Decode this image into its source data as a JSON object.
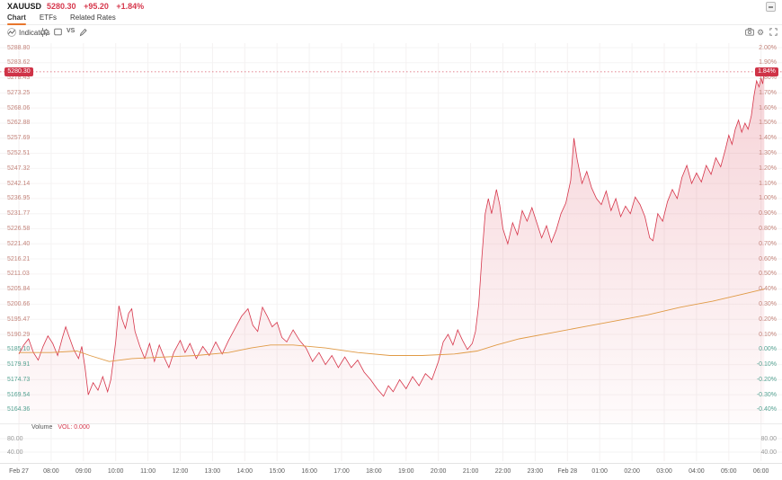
{
  "header": {
    "symbol": "XAUUSD",
    "price": "5280.30",
    "change": "+95.20",
    "change_pct": "+1.84%"
  },
  "tabs": [
    {
      "label": "Chart",
      "active": true
    },
    {
      "label": "ETFs",
      "active": false
    },
    {
      "label": "Related Rates",
      "active": false
    }
  ],
  "toolbar": {
    "indicators_label": "Indicators",
    "vs_label": "VS"
  },
  "colors": {
    "accent_red": "#d6354a",
    "badge_bg": "#cf3347",
    "ma_orange": "#e09a45",
    "tab_underline": "#e8762c",
    "pos_axis_label": "#c4857c",
    "neg_axis_label": "#56a393"
  },
  "chart_data": {
    "type": "area",
    "title": "XAUUSD intraday price with moving average",
    "last_price": 5280.3,
    "baseline_price": 5185.1,
    "last_change_pct": 1.84,
    "price_badge": "5280.30",
    "percent_badge": "1.84%",
    "ylim_percent": [
      -0.4,
      2.0
    ],
    "grid": true,
    "levels": [
      {
        "price": "5288.80",
        "percent": "2.00%",
        "value": 2.0
      },
      {
        "price": "5283.62",
        "percent": "1.90%",
        "value": 1.9
      },
      {
        "price": "5278.43",
        "percent": "1.80%",
        "value": 1.8
      },
      {
        "price": "5273.25",
        "percent": "1.70%",
        "value": 1.7
      },
      {
        "price": "5268.06",
        "percent": "1.60%",
        "value": 1.6
      },
      {
        "price": "5262.88",
        "percent": "1.50%",
        "value": 1.5
      },
      {
        "price": "5257.69",
        "percent": "1.40%",
        "value": 1.4
      },
      {
        "price": "5252.51",
        "percent": "1.30%",
        "value": 1.3
      },
      {
        "price": "5247.32",
        "percent": "1.20%",
        "value": 1.2
      },
      {
        "price": "5242.14",
        "percent": "1.10%",
        "value": 1.1
      },
      {
        "price": "5236.95",
        "percent": "1.00%",
        "value": 1.0
      },
      {
        "price": "5231.77",
        "percent": "0.90%",
        "value": 0.9
      },
      {
        "price": "5226.58",
        "percent": "0.80%",
        "value": 0.8
      },
      {
        "price": "5221.40",
        "percent": "0.70%",
        "value": 0.7
      },
      {
        "price": "5216.21",
        "percent": "0.60%",
        "value": 0.6
      },
      {
        "price": "5211.03",
        "percent": "0.50%",
        "value": 0.5
      },
      {
        "price": "5205.84",
        "percent": "0.40%",
        "value": 0.4
      },
      {
        "price": "5200.66",
        "percent": "0.30%",
        "value": 0.3
      },
      {
        "price": "5195.47",
        "percent": "0.20%",
        "value": 0.2
      },
      {
        "price": "5190.29",
        "percent": "0.10%",
        "value": 0.1
      },
      {
        "price": "5185.10",
        "percent": "0.00%",
        "value": 0.0
      },
      {
        "price": "5179.91",
        "percent": "-0.10%",
        "value": -0.1
      },
      {
        "price": "5174.73",
        "percent": "-0.20%",
        "value": -0.2
      },
      {
        "price": "5169.54",
        "percent": "-0.30%",
        "value": -0.3
      },
      {
        "price": "5164.36",
        "percent": "-0.40%",
        "value": -0.4
      }
    ],
    "time_axis": [
      "Feb 27",
      "08:00",
      "09:00",
      "10:00",
      "11:00",
      "12:00",
      "13:00",
      "14:00",
      "15:00",
      "16:00",
      "17:00",
      "18:00",
      "19:00",
      "20:00",
      "21:00",
      "22:00",
      "23:00",
      "Feb 28",
      "01:00",
      "02:00",
      "03:00",
      "04:00",
      "05:00",
      "06:00"
    ],
    "series": [
      {
        "name": "price",
        "color": "#d6354a",
        "points": [
          [
            0,
            -0.03
          ],
          [
            0.15,
            0.03
          ],
          [
            0.3,
            0.07
          ],
          [
            0.45,
            -0.02
          ],
          [
            0.6,
            -0.07
          ],
          [
            0.75,
            0.02
          ],
          [
            0.9,
            0.09
          ],
          [
            1.05,
            0.04
          ],
          [
            1.2,
            -0.04
          ],
          [
            1.35,
            0.08
          ],
          [
            1.45,
            0.15
          ],
          [
            1.55,
            0.09
          ],
          [
            1.7,
            0.0
          ],
          [
            1.85,
            -0.06
          ],
          [
            1.95,
            0.02
          ],
          [
            2.05,
            -0.12
          ],
          [
            2.15,
            -0.3
          ],
          [
            2.3,
            -0.22
          ],
          [
            2.45,
            -0.27
          ],
          [
            2.6,
            -0.18
          ],
          [
            2.75,
            -0.28
          ],
          [
            2.85,
            -0.2
          ],
          [
            3.0,
            0.05
          ],
          [
            3.1,
            0.29
          ],
          [
            3.2,
            0.2
          ],
          [
            3.3,
            0.14
          ],
          [
            3.4,
            0.24
          ],
          [
            3.5,
            0.27
          ],
          [
            3.6,
            0.12
          ],
          [
            3.75,
            0.02
          ],
          [
            3.9,
            -0.06
          ],
          [
            4.05,
            0.04
          ],
          [
            4.2,
            -0.08
          ],
          [
            4.35,
            0.03
          ],
          [
            4.5,
            -0.05
          ],
          [
            4.65,
            -0.12
          ],
          [
            4.8,
            -0.02
          ],
          [
            5.0,
            0.06
          ],
          [
            5.15,
            -0.02
          ],
          [
            5.3,
            0.04
          ],
          [
            5.5,
            -0.06
          ],
          [
            5.7,
            0.02
          ],
          [
            5.9,
            -0.04
          ],
          [
            6.1,
            0.05
          ],
          [
            6.3,
            -0.03
          ],
          [
            6.5,
            0.06
          ],
          [
            6.7,
            0.14
          ],
          [
            6.9,
            0.22
          ],
          [
            7.1,
            0.27
          ],
          [
            7.25,
            0.16
          ],
          [
            7.4,
            0.12
          ],
          [
            7.55,
            0.28
          ],
          [
            7.7,
            0.22
          ],
          [
            7.85,
            0.15
          ],
          [
            8.0,
            0.18
          ],
          [
            8.15,
            0.08
          ],
          [
            8.3,
            0.05
          ],
          [
            8.5,
            0.13
          ],
          [
            8.7,
            0.06
          ],
          [
            8.9,
            0.01
          ],
          [
            9.1,
            -0.08
          ],
          [
            9.3,
            -0.02
          ],
          [
            9.5,
            -0.1
          ],
          [
            9.7,
            -0.04
          ],
          [
            9.9,
            -0.12
          ],
          [
            10.1,
            -0.05
          ],
          [
            10.3,
            -0.12
          ],
          [
            10.5,
            -0.07
          ],
          [
            10.7,
            -0.15
          ],
          [
            10.9,
            -0.2
          ],
          [
            11.1,
            -0.26
          ],
          [
            11.3,
            -0.31
          ],
          [
            11.45,
            -0.24
          ],
          [
            11.6,
            -0.28
          ],
          [
            11.8,
            -0.2
          ],
          [
            12.0,
            -0.26
          ],
          [
            12.2,
            -0.18
          ],
          [
            12.4,
            -0.24
          ],
          [
            12.6,
            -0.16
          ],
          [
            12.8,
            -0.2
          ],
          [
            13.0,
            -0.08
          ],
          [
            13.15,
            0.05
          ],
          [
            13.3,
            0.1
          ],
          [
            13.45,
            0.03
          ],
          [
            13.6,
            0.13
          ],
          [
            13.75,
            0.06
          ],
          [
            13.9,
            0.0
          ],
          [
            14.05,
            0.04
          ],
          [
            14.15,
            0.12
          ],
          [
            14.25,
            0.3
          ],
          [
            14.35,
            0.62
          ],
          [
            14.45,
            0.9
          ],
          [
            14.55,
            1.0
          ],
          [
            14.65,
            0.9
          ],
          [
            14.8,
            1.06
          ],
          [
            14.9,
            0.96
          ],
          [
            15.0,
            0.8
          ],
          [
            15.15,
            0.7
          ],
          [
            15.3,
            0.84
          ],
          [
            15.45,
            0.76
          ],
          [
            15.6,
            0.92
          ],
          [
            15.75,
            0.85
          ],
          [
            15.9,
            0.94
          ],
          [
            16.05,
            0.84
          ],
          [
            16.2,
            0.74
          ],
          [
            16.35,
            0.82
          ],
          [
            16.5,
            0.71
          ],
          [
            16.65,
            0.79
          ],
          [
            16.8,
            0.9
          ],
          [
            16.95,
            0.97
          ],
          [
            17.1,
            1.12
          ],
          [
            17.2,
            1.4
          ],
          [
            17.3,
            1.26
          ],
          [
            17.45,
            1.1
          ],
          [
            17.6,
            1.18
          ],
          [
            17.75,
            1.07
          ],
          [
            17.9,
            1.0
          ],
          [
            18.05,
            0.96
          ],
          [
            18.2,
            1.05
          ],
          [
            18.35,
            0.92
          ],
          [
            18.5,
            1.0
          ],
          [
            18.65,
            0.88
          ],
          [
            18.8,
            0.95
          ],
          [
            18.95,
            0.9
          ],
          [
            19.1,
            1.01
          ],
          [
            19.25,
            0.96
          ],
          [
            19.4,
            0.88
          ],
          [
            19.55,
            0.74
          ],
          [
            19.65,
            0.72
          ],
          [
            19.8,
            0.9
          ],
          [
            19.95,
            0.85
          ],
          [
            20.1,
            0.98
          ],
          [
            20.25,
            1.06
          ],
          [
            20.4,
            1.0
          ],
          [
            20.55,
            1.14
          ],
          [
            20.7,
            1.22
          ],
          [
            20.85,
            1.1
          ],
          [
            21.0,
            1.17
          ],
          [
            21.15,
            1.11
          ],
          [
            21.3,
            1.22
          ],
          [
            21.45,
            1.16
          ],
          [
            21.6,
            1.27
          ],
          [
            21.75,
            1.21
          ],
          [
            21.9,
            1.33
          ],
          [
            22.0,
            1.42
          ],
          [
            22.1,
            1.36
          ],
          [
            22.2,
            1.46
          ],
          [
            22.3,
            1.52
          ],
          [
            22.4,
            1.44
          ],
          [
            22.5,
            1.5
          ],
          [
            22.6,
            1.46
          ],
          [
            22.7,
            1.55
          ],
          [
            22.78,
            1.68
          ],
          [
            22.86,
            1.78
          ],
          [
            22.94,
            1.74
          ],
          [
            23.0,
            1.8
          ],
          [
            23.05,
            1.76
          ],
          [
            23.1,
            1.84
          ]
        ]
      },
      {
        "name": "ma",
        "color": "#e09a45",
        "points": [
          [
            0,
            -0.02
          ],
          [
            1,
            -0.02
          ],
          [
            1.8,
            -0.01
          ],
          [
            2.2,
            -0.04
          ],
          [
            2.8,
            -0.08
          ],
          [
            3.5,
            -0.06
          ],
          [
            4.5,
            -0.05
          ],
          [
            5.5,
            -0.04
          ],
          [
            6.5,
            -0.02
          ],
          [
            7.2,
            0.01
          ],
          [
            7.8,
            0.03
          ],
          [
            8.5,
            0.03
          ],
          [
            9.5,
            0.01
          ],
          [
            10.5,
            -0.02
          ],
          [
            11.5,
            -0.04
          ],
          [
            12.5,
            -0.04
          ],
          [
            13.5,
            -0.03
          ],
          [
            14.2,
            -0.01
          ],
          [
            14.8,
            0.03
          ],
          [
            15.5,
            0.07
          ],
          [
            16.5,
            0.11
          ],
          [
            17.5,
            0.15
          ],
          [
            18.5,
            0.19
          ],
          [
            19.5,
            0.23
          ],
          [
            20.5,
            0.28
          ],
          [
            21.5,
            0.32
          ],
          [
            22.5,
            0.37
          ],
          [
            23.1,
            0.4
          ]
        ]
      }
    ],
    "volume": {
      "label": "Volume",
      "vol_label": "VOL: 0.000",
      "axis": [
        "80.00",
        "40.00"
      ],
      "values_all_zero": true
    }
  }
}
